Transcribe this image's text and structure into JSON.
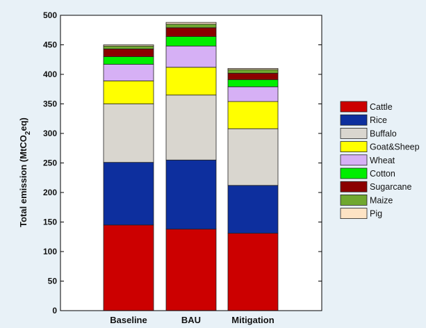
{
  "chart_data": {
    "type": "bar",
    "stacked": true,
    "title": "",
    "xlabel": "",
    "ylabel": "Total emission (MtCO2eq)",
    "ylabel_parts": {
      "main": "Total emission (MtCO",
      "sub": "2",
      "tail": "eq)"
    },
    "ylim": [
      0,
      500
    ],
    "yticks": [
      0,
      50,
      100,
      150,
      200,
      250,
      300,
      350,
      400,
      450,
      500
    ],
    "categories": [
      "Baseline",
      "BAU",
      "Mitigation"
    ],
    "legend_position": "right",
    "grid": false,
    "series": [
      {
        "name": "Cattle",
        "color": "#cc0000",
        "values": [
          145,
          138,
          131
        ]
      },
      {
        "name": "Rice",
        "color": "#0d2f9e",
        "values": [
          106,
          117,
          81
        ]
      },
      {
        "name": "Buffalo",
        "color": "#d9d6cf",
        "values": [
          99,
          110,
          96
        ]
      },
      {
        "name": "Goat&Sheep",
        "color": "#ffff00",
        "values": [
          39,
          47,
          46
        ]
      },
      {
        "name": "Wheat",
        "color": "#d6b0f5",
        "values": [
          28,
          36,
          25
        ]
      },
      {
        "name": "Cotton",
        "color": "#00ee00",
        "values": [
          13,
          16,
          12
        ]
      },
      {
        "name": "Sugarcane",
        "color": "#8b0000",
        "values": [
          13,
          15,
          11
        ]
      },
      {
        "name": "Maize",
        "color": "#70a830",
        "values": [
          5,
          6,
          6
        ]
      },
      {
        "name": "Pig",
        "color": "#fde3c4",
        "values": [
          2,
          3,
          2
        ]
      }
    ]
  }
}
